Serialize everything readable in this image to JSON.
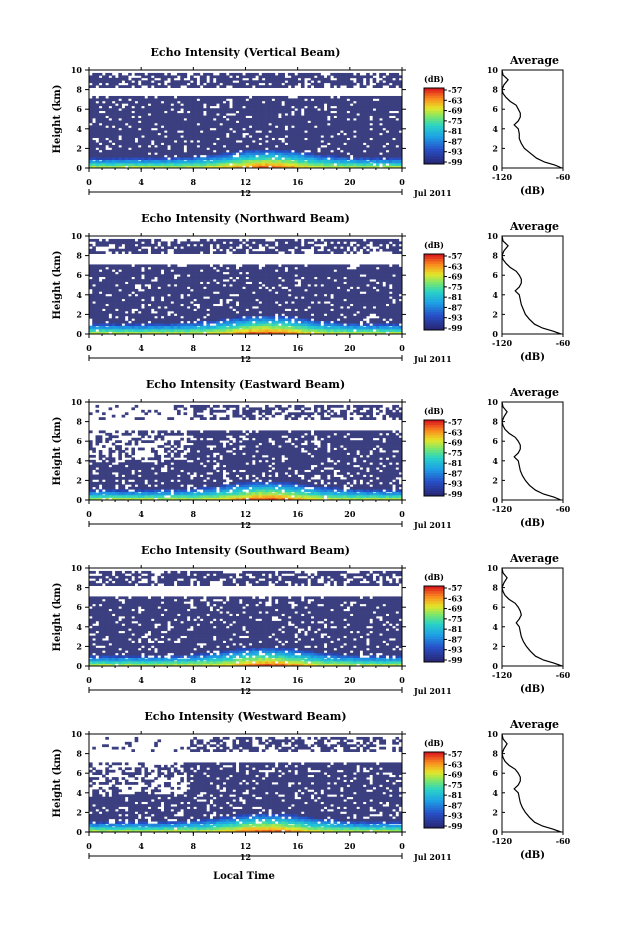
{
  "figure": {
    "xlabel": "Local Time",
    "colors": {
      "sky_dark": "#3b3f80",
      "plot_bg": "#ffffff",
      "axis": "#000000"
    }
  },
  "chart_data": [
    {
      "type": "heatmap",
      "title": "Echo Intensity (Vertical Beam)",
      "ylabel": "Height (km)",
      "xlim": [
        0,
        24
      ],
      "ylim": [
        0,
        10
      ],
      "x_ticks": [
        "0",
        "4",
        "8",
        "12",
        "16",
        "20",
        "0"
      ],
      "y_ticks": [
        "0",
        "2",
        "4",
        "6",
        "8",
        "10"
      ],
      "date_marker": "12",
      "date_text": "Jul 2011",
      "colorbar": {
        "unit": "(dB)",
        "ticks": [
          "-57",
          "-63",
          "-69",
          "-75",
          "-81",
          "-87",
          "-93",
          "-99"
        ]
      },
      "layers": [
        [
          0,
          0.6
        ],
        [
          0.6,
          7.2
        ],
        [
          8.2,
          9.5
        ]
      ],
      "gap_prob": [
        0.04,
        0.12,
        0.3
      ],
      "average": {
        "title": "Average",
        "xlabel": "(dB)",
        "xlim": [
          -120,
          -60
        ],
        "x_ticks": [
          "-120",
          "-60"
        ],
        "y_ticks": [
          "0",
          "2",
          "4",
          "6",
          "8",
          "10"
        ],
        "height": [
          0,
          0.3,
          0.6,
          1,
          1.5,
          2,
          2.5,
          3,
          3.5,
          4,
          4.4,
          4.8,
          5.2,
          5.6,
          6,
          6.4,
          6.8,
          7.2,
          7.6,
          8,
          8.5,
          9,
          9.5,
          10
        ],
        "value": [
          -61,
          -68,
          -78,
          -86,
          -92,
          -98,
          -101,
          -103,
          -103,
          -104,
          -108,
          -104,
          -102,
          -102,
          -104,
          -106,
          -112,
          -116,
          -119,
          -120,
          -118,
          -114,
          -119,
          -120
        ]
      }
    },
    {
      "type": "heatmap",
      "title": "Echo Intensity (Northward Beam)",
      "ylabel": "Height (km)",
      "xlim": [
        0,
        24
      ],
      "ylim": [
        0,
        10
      ],
      "x_ticks": [
        "0",
        "4",
        "8",
        "12",
        "16",
        "20",
        "0"
      ],
      "y_ticks": [
        "0",
        "2",
        "4",
        "6",
        "8",
        "10"
      ],
      "date_marker": "12",
      "date_text": "Jul 2011",
      "colorbar": {
        "unit": "(dB)",
        "ticks": [
          "-57",
          "-63",
          "-69",
          "-75",
          "-81",
          "-87",
          "-93",
          "-99"
        ]
      },
      "layers": [
        [
          0,
          0.6
        ],
        [
          0.6,
          7.0
        ],
        [
          8.2,
          9.5
        ]
      ],
      "gap_prob": [
        0.04,
        0.13,
        0.3
      ],
      "average": {
        "title": "Average",
        "xlabel": "(dB)",
        "xlim": [
          -120,
          -60
        ],
        "x_ticks": [
          "-120",
          "-60"
        ],
        "y_ticks": [
          "0",
          "2",
          "4",
          "6",
          "8",
          "10"
        ],
        "height": [
          0,
          0.3,
          0.6,
          1,
          1.5,
          2,
          2.5,
          3,
          3.5,
          4,
          4.4,
          4.8,
          5.2,
          5.6,
          6,
          6.4,
          6.8,
          7.2,
          7.6,
          8,
          8.5,
          9,
          9.5,
          10
        ],
        "value": [
          -62,
          -70,
          -80,
          -88,
          -93,
          -97,
          -99,
          -101,
          -102,
          -103,
          -107,
          -103,
          -101,
          -101,
          -103,
          -106,
          -112,
          -116,
          -119,
          -120,
          -118,
          -114,
          -119,
          -120
        ]
      }
    },
    {
      "type": "heatmap",
      "title": "Echo Intensity (Eastward Beam)",
      "ylabel": "Height (km)",
      "xlim": [
        0,
        24
      ],
      "ylim": [
        0,
        10
      ],
      "x_ticks": [
        "0",
        "4",
        "8",
        "12",
        "16",
        "20",
        "0"
      ],
      "y_ticks": [
        "0",
        "2",
        "4",
        "6",
        "8",
        "10"
      ],
      "date_marker": "12",
      "date_text": "Jul 2011",
      "colorbar": {
        "unit": "(dB)",
        "ticks": [
          "-57",
          "-63",
          "-69",
          "-75",
          "-81",
          "-87",
          "-93",
          "-99"
        ]
      },
      "layers": [
        [
          0,
          0.6
        ],
        [
          0.6,
          7.0
        ],
        [
          8.2,
          9.5
        ]
      ],
      "gap_prob": [
        0.04,
        0.18,
        0.45
      ],
      "average": {
        "title": "Average",
        "xlabel": "(dB)",
        "xlim": [
          -120,
          -60
        ],
        "x_ticks": [
          "-120",
          "-60"
        ],
        "y_ticks": [
          "0",
          "2",
          "4",
          "6",
          "8",
          "10"
        ],
        "height": [
          0,
          0.3,
          0.6,
          1,
          1.5,
          2,
          2.5,
          3,
          3.5,
          4,
          4.4,
          4.8,
          5.2,
          5.6,
          6,
          6.4,
          6.8,
          7.2,
          7.6,
          8,
          8.5,
          9,
          9.5,
          10
        ],
        "value": [
          -62,
          -69,
          -79,
          -87,
          -93,
          -97,
          -100,
          -102,
          -103,
          -104,
          -108,
          -104,
          -102,
          -102,
          -104,
          -107,
          -113,
          -117,
          -119,
          -120,
          -118,
          -115,
          -119,
          -120
        ]
      }
    },
    {
      "type": "heatmap",
      "title": "Echo Intensity (Southward Beam)",
      "ylabel": "Height (km)",
      "xlim": [
        0,
        24
      ],
      "ylim": [
        0,
        10
      ],
      "x_ticks": [
        "0",
        "4",
        "8",
        "12",
        "16",
        "20",
        "0"
      ],
      "y_ticks": [
        "0",
        "2",
        "4",
        "6",
        "8",
        "10"
      ],
      "date_marker": "12",
      "date_text": "Jul 2011",
      "colorbar": {
        "unit": "(dB)",
        "ticks": [
          "-57",
          "-63",
          "-69",
          "-75",
          "-81",
          "-87",
          "-93",
          "-99"
        ]
      },
      "layers": [
        [
          0,
          0.6
        ],
        [
          0.6,
          7.0
        ],
        [
          8.2,
          9.5
        ]
      ],
      "gap_prob": [
        0.04,
        0.14,
        0.32
      ],
      "average": {
        "title": "Average",
        "xlabel": "(dB)",
        "xlim": [
          -120,
          -60
        ],
        "x_ticks": [
          "-120",
          "-60"
        ],
        "y_ticks": [
          "0",
          "2",
          "4",
          "6",
          "8",
          "10"
        ],
        "height": [
          0,
          0.3,
          0.6,
          1,
          1.5,
          2,
          2.5,
          3,
          3.5,
          4,
          4.4,
          4.8,
          5.2,
          5.6,
          6,
          6.4,
          6.8,
          7.2,
          7.6,
          8,
          8.5,
          9,
          9.5,
          10
        ],
        "value": [
          -61,
          -69,
          -79,
          -87,
          -92,
          -96,
          -99,
          -101,
          -102,
          -103,
          -106,
          -103,
          -101,
          -102,
          -104,
          -107,
          -113,
          -117,
          -119,
          -120,
          -118,
          -115,
          -119,
          -120
        ]
      }
    },
    {
      "type": "heatmap",
      "title": "Echo Intensity (Westward Beam)",
      "ylabel": "Height (km)",
      "xlim": [
        0,
        24
      ],
      "ylim": [
        0,
        10
      ],
      "x_ticks": [
        "0",
        "4",
        "8",
        "12",
        "16",
        "20",
        "0"
      ],
      "y_ticks": [
        "0",
        "2",
        "4",
        "6",
        "8",
        "10"
      ],
      "date_marker": "12",
      "date_text": "Jul 2011",
      "colorbar": {
        "unit": "(dB)",
        "ticks": [
          "-57",
          "-63",
          "-69",
          "-75",
          "-81",
          "-87",
          "-93",
          "-99"
        ]
      },
      "layers": [
        [
          0,
          0.6
        ],
        [
          0.6,
          7.0
        ],
        [
          8.2,
          9.5
        ]
      ],
      "gap_prob": [
        0.04,
        0.18,
        0.45
      ],
      "average": {
        "title": "Average",
        "xlabel": "(dB)",
        "xlim": [
          -120,
          -60
        ],
        "x_ticks": [
          "-120",
          "-60"
        ],
        "y_ticks": [
          "0",
          "2",
          "4",
          "6",
          "8",
          "10"
        ],
        "height": [
          0,
          0.3,
          0.6,
          1,
          1.5,
          2,
          2.5,
          3,
          3.5,
          4,
          4.4,
          4.8,
          5.2,
          5.6,
          6,
          6.4,
          6.8,
          7.2,
          7.6,
          8,
          8.5,
          9,
          9.5,
          10
        ],
        "value": [
          -62,
          -70,
          -80,
          -88,
          -93,
          -97,
          -100,
          -102,
          -103,
          -104,
          -108,
          -104,
          -102,
          -102,
          -104,
          -107,
          -113,
          -117,
          -119,
          -120,
          -118,
          -115,
          -119,
          -120
        ]
      }
    }
  ]
}
